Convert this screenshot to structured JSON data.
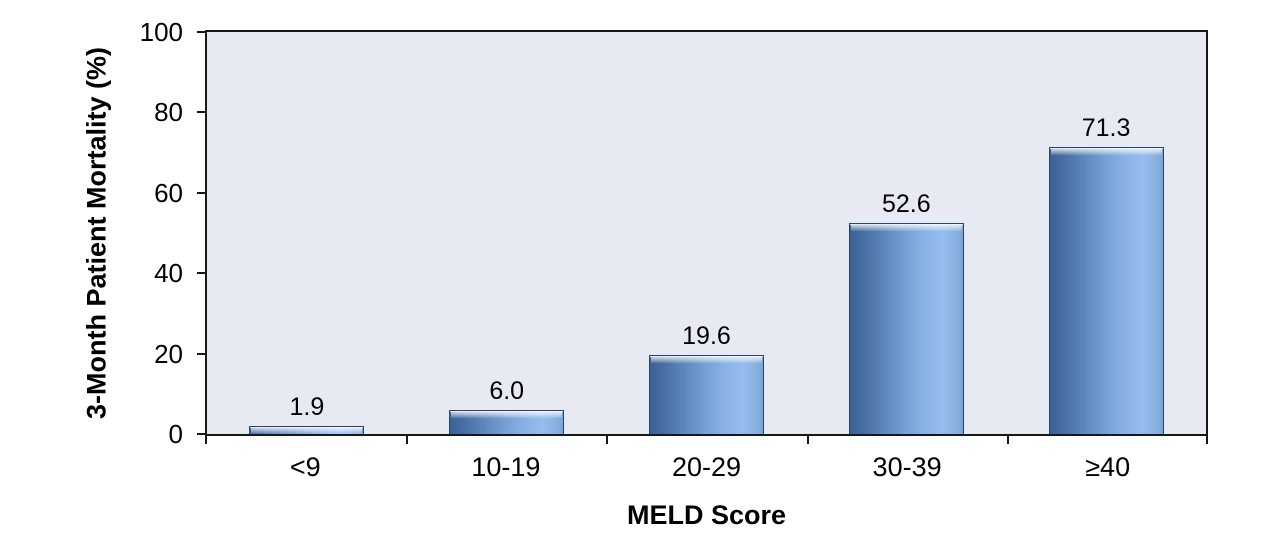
{
  "chart_data": {
    "type": "bar",
    "title": "",
    "categories": [
      "<9",
      "10-19",
      "20-29",
      "30-39",
      "≥40"
    ],
    "values": [
      1.9,
      6.0,
      19.6,
      52.6,
      71.3
    ],
    "value_labels": [
      "1.9",
      "6.0",
      "19.6",
      "52.6",
      "71.3"
    ],
    "xlabel": "MELD Score",
    "ylabel": "3-Month Patient Mortality (%)",
    "ylim": [
      0,
      100
    ],
    "yticks": [
      0,
      20,
      40,
      60,
      80,
      100
    ],
    "grid": false,
    "legend_position": "none",
    "colors": {
      "plot_background": "#e7eaf2",
      "bar_border": "#28456f",
      "bar_dark": "#3b6095",
      "bar_light": "#97bdee",
      "axis": "#17181a",
      "text": "#000000"
    }
  }
}
